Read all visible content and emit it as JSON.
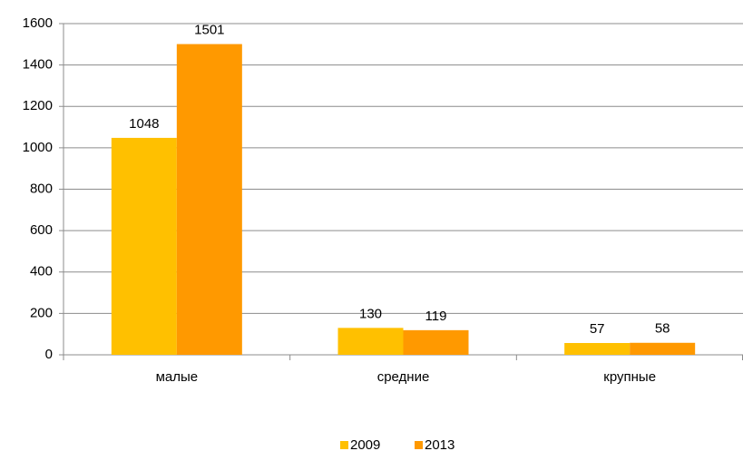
{
  "chart_data": {
    "type": "bar",
    "categories": [
      "малые",
      "средние",
      "крупные"
    ],
    "series": [
      {
        "name": "2009",
        "color": "#ffc000",
        "values": [
          1048,
          130,
          57
        ]
      },
      {
        "name": "2013",
        "color": "#ff9900",
        "values": [
          1501,
          119,
          58
        ]
      }
    ],
    "ylim": [
      0,
      1600
    ],
    "yticks": [
      0,
      200,
      400,
      600,
      800,
      1000,
      1200,
      1400,
      1600
    ],
    "grid": true,
    "legend": "bottom"
  }
}
